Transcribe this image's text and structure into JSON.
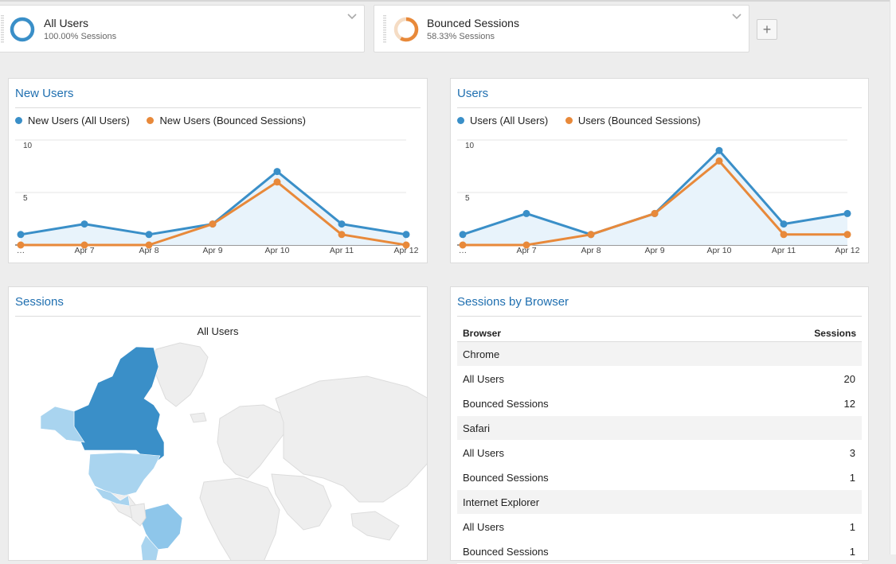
{
  "segments": [
    {
      "name": "All Users",
      "subtitle": "100.00% Sessions",
      "color": "#3a8fc8",
      "fraction": 1.0
    },
    {
      "name": "Bounced Sessions",
      "subtitle": "58.33% Sessions",
      "color": "#e8893a",
      "fraction": 0.5833
    }
  ],
  "add_segment_label": "+",
  "colors": {
    "all_users": "#3a8fc8",
    "bounced": "#e8893a",
    "title": "#1f6fb0",
    "map_dark": "#3a8fc8",
    "map_light": "#a9d4ef",
    "map_empty": "#eeeeee"
  },
  "panels": {
    "new_users": {
      "title": "New Users",
      "legend": [
        {
          "label": "New Users (All Users)",
          "color": "#3a8fc8"
        },
        {
          "label": "New Users (Bounced Sessions)",
          "color": "#e8893a"
        }
      ]
    },
    "users": {
      "title": "Users",
      "legend": [
        {
          "label": "Users (All Users)",
          "color": "#3a8fc8"
        },
        {
          "label": "Users (Bounced Sessions)",
          "color": "#e8893a"
        }
      ]
    },
    "sessions": {
      "title": "Sessions",
      "map_caption": "All Users"
    },
    "browser": {
      "title": "Sessions by Browser",
      "headers": {
        "browser": "Browser",
        "sessions": "Sessions"
      },
      "rows": [
        {
          "label": "Chrome",
          "value": "",
          "group": true
        },
        {
          "label": "All Users",
          "value": "20",
          "group": false
        },
        {
          "label": "Bounced Sessions",
          "value": "12",
          "group": false
        },
        {
          "label": "Safari",
          "value": "",
          "group": true
        },
        {
          "label": "All Users",
          "value": "3",
          "group": false
        },
        {
          "label": "Bounced Sessions",
          "value": "1",
          "group": false
        },
        {
          "label": "Internet Explorer",
          "value": "",
          "group": true
        },
        {
          "label": "All Users",
          "value": "1",
          "group": false
        },
        {
          "label": "Bounced Sessions",
          "value": "1",
          "group": false
        }
      ]
    }
  },
  "chart_data": [
    {
      "type": "line",
      "title": "New Users",
      "x": [
        "…",
        "Apr 7",
        "Apr 8",
        "Apr 9",
        "Apr 10",
        "Apr 11",
        "Apr 12"
      ],
      "y_ticks": [
        "10",
        "5"
      ],
      "ylim": [
        0,
        10
      ],
      "series": [
        {
          "name": "New Users (All Users)",
          "color": "#3a8fc8",
          "values": [
            1,
            2,
            1,
            2,
            7,
            2,
            1
          ]
        },
        {
          "name": "New Users (Bounced Sessions)",
          "color": "#e8893a",
          "values": [
            0,
            0,
            0,
            2,
            6,
            1,
            0
          ]
        }
      ]
    },
    {
      "type": "line",
      "title": "Users",
      "x": [
        "…",
        "Apr 7",
        "Apr 8",
        "Apr 9",
        "Apr 10",
        "Apr 11",
        "Apr 12"
      ],
      "y_ticks": [
        "10",
        "5"
      ],
      "ylim": [
        0,
        10
      ],
      "series": [
        {
          "name": "Users (All Users)",
          "color": "#3a8fc8",
          "values": [
            1,
            3,
            1,
            3,
            9,
            2,
            3
          ]
        },
        {
          "name": "Users (Bounced Sessions)",
          "color": "#e8893a",
          "values": [
            0,
            0,
            1,
            3,
            8,
            1,
            1
          ]
        }
      ]
    }
  ]
}
